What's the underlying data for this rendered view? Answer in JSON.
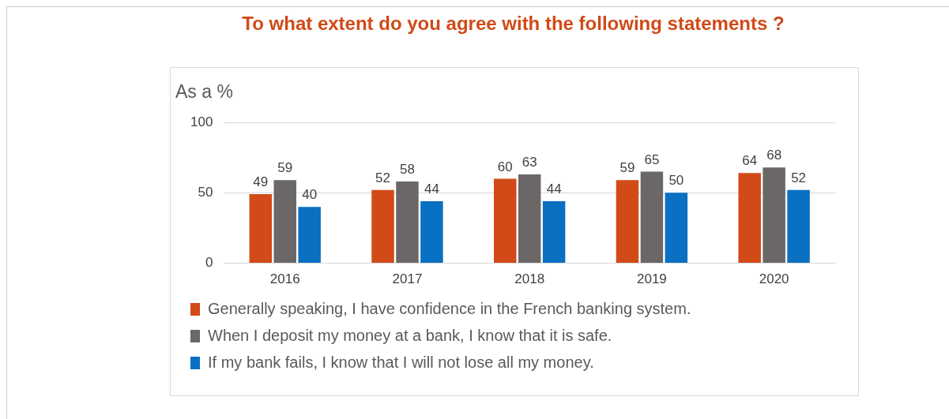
{
  "chart_data": {
    "type": "bar",
    "title": "To what extent do you agree with the following statements ?",
    "ylabel": "As a %",
    "categories": [
      "2016",
      "2017",
      "2018",
      "2019",
      "2020"
    ],
    "series": [
      {
        "name": "Generally speaking, I have confidence in the French banking system.",
        "color": "#d14a17",
        "values": [
          49,
          52,
          60,
          59,
          64
        ]
      },
      {
        "name": "When I deposit my money at a bank, I know that it is safe.",
        "color": "#6b6767",
        "values": [
          59,
          58,
          63,
          65,
          68
        ]
      },
      {
        "name": "If my bank fails, I know that I will not lose all my money.",
        "color": "#0a70c2",
        "values": [
          40,
          44,
          44,
          50,
          52
        ]
      }
    ],
    "ylim": [
      0,
      100
    ],
    "yticks": [
      0,
      50,
      100
    ],
    "grid": "y",
    "legend": "bottom",
    "data_labels": true
  }
}
